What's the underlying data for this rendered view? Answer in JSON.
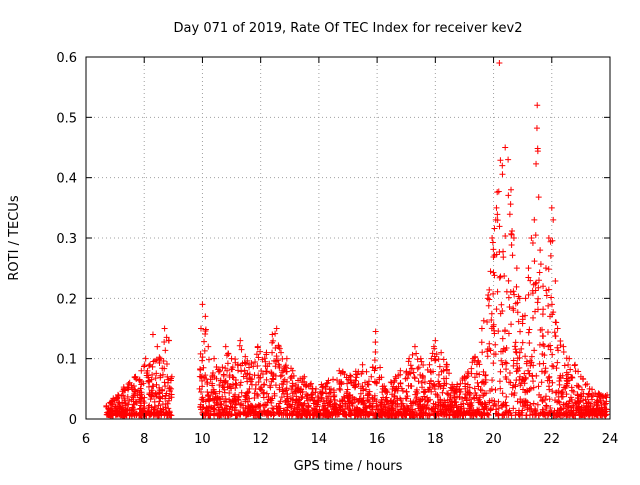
{
  "chart_data": {
    "type": "scatter",
    "title": "Day 071 of 2019, Rate Of TEC Index for receiver kev2",
    "xlabel": "GPS time / hours",
    "ylabel": "ROTI / TECUs",
    "xlim": [
      6,
      24
    ],
    "ylim": [
      0,
      0.6
    ],
    "xticks": [
      6,
      8,
      10,
      12,
      14,
      16,
      18,
      20,
      22,
      24
    ],
    "yticks": [
      0,
      0.1,
      0.2,
      0.3,
      0.4,
      0.5,
      0.6
    ],
    "xtick_labels": [
      "6",
      "8",
      "10",
      "12",
      "14",
      "16",
      "18",
      "20",
      "22",
      "24"
    ],
    "ytick_labels": [
      "0",
      "0.1",
      "0.2",
      "0.3",
      "0.4",
      "0.5",
      "0.6"
    ],
    "grid": true,
    "marker": "+",
    "color": "#ff0000",
    "series": [
      {
        "name": "ROTI",
        "x": [
          6.7,
          6.9,
          7.1,
          7.3,
          7.5,
          7.7,
          7.9,
          8.05,
          8.2,
          8.3,
          8.45,
          8.55,
          8.7,
          8.85,
          8.95,
          9.9,
          9.95,
          10.0,
          10.1,
          10.2,
          10.4,
          10.6,
          10.8,
          11.0,
          11.3,
          11.6,
          11.9,
          12.2,
          12.4,
          12.55,
          12.7,
          12.9,
          13.1,
          13.5,
          13.9,
          14.3,
          14.7,
          15.1,
          15.5,
          15.8,
          15.95,
          16.2,
          16.5,
          16.8,
          17.1,
          17.3,
          17.5,
          17.8,
          18.0,
          18.2,
          18.4,
          18.6,
          19.0,
          19.3,
          19.6,
          19.8,
          19.95,
          20.1,
          20.2,
          20.3,
          20.4,
          20.5,
          20.6,
          20.7,
          20.8,
          20.9,
          21.0,
          21.1,
          21.2,
          21.3,
          21.4,
          21.5,
          21.6,
          21.7,
          21.8,
          21.9,
          22.0,
          22.05,
          22.2,
          22.4,
          22.6,
          22.8,
          23.0,
          23.3,
          23.6,
          23.9
        ],
        "y": [
          0.02,
          0.03,
          0.04,
          0.05,
          0.06,
          0.07,
          0.08,
          0.1,
          0.09,
          0.14,
          0.12,
          0.1,
          0.15,
          0.13,
          0.07,
          0.05,
          0.15,
          0.19,
          0.17,
          0.12,
          0.1,
          0.08,
          0.12,
          0.1,
          0.13,
          0.09,
          0.12,
          0.11,
          0.14,
          0.15,
          0.11,
          0.1,
          0.08,
          0.07,
          0.05,
          0.06,
          0.08,
          0.07,
          0.09,
          0.07,
          0.145,
          0.05,
          0.06,
          0.08,
          0.1,
          0.12,
          0.1,
          0.09,
          0.13,
          0.11,
          0.09,
          0.05,
          0.07,
          0.1,
          0.15,
          0.2,
          0.3,
          0.35,
          0.59,
          0.42,
          0.45,
          0.43,
          0.38,
          0.3,
          0.25,
          0.2,
          0.17,
          0.2,
          0.25,
          0.3,
          0.33,
          0.52,
          0.28,
          0.22,
          0.25,
          0.3,
          0.35,
          0.33,
          0.15,
          0.12,
          0.1,
          0.09,
          0.07,
          0.05,
          0.04,
          0.04
        ]
      }
    ]
  }
}
